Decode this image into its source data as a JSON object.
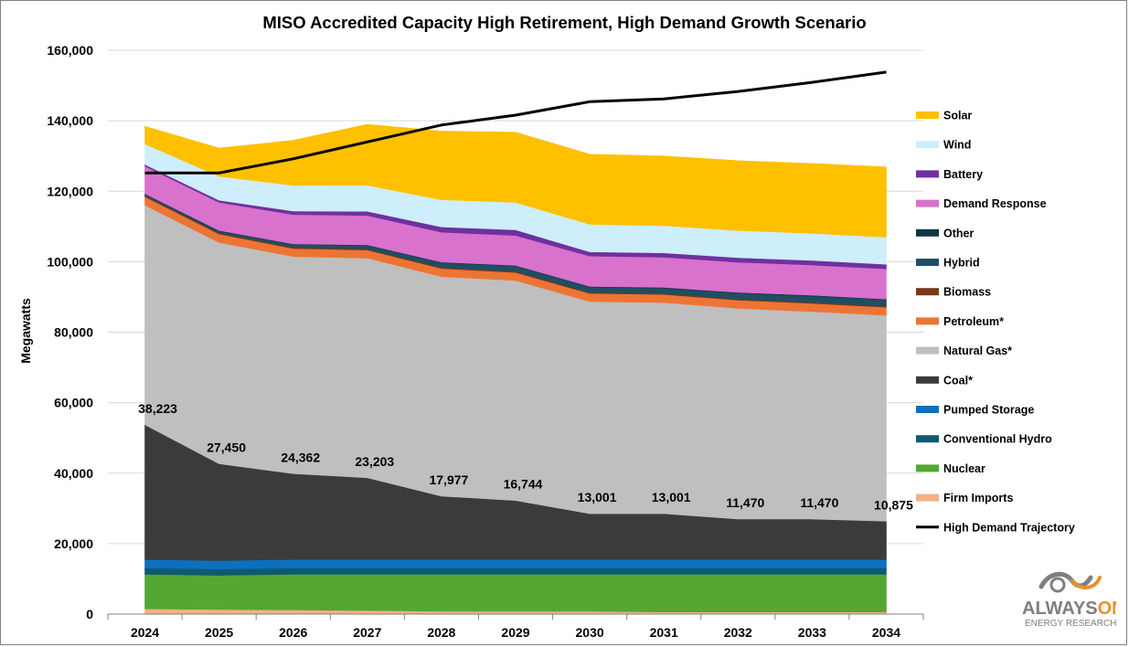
{
  "colors": {
    "Solar": "#ffc000",
    "Wind": "#cdeefa",
    "Battery": "#7030a0",
    "Demand Response": "#d872cc",
    "Other": "#0f3642",
    "Hybrid": "#1f4e63",
    "Biomass": "#7b3717",
    "Petroleum*": "#ec7535",
    "Natural Gas*": "#bfbfbf",
    "Coal*": "#3b3b3b",
    "Pumped Storage": "#0c70c0",
    "Conventional Hydro": "#0e5a71",
    "Nuclear": "#53a732",
    "Firm Imports": "#f4b183",
    "High Demand Trajectory": "#000000"
  },
  "logo": {
    "text_gray": "ALWAYS",
    "text_orange": "ON",
    "subtitle": "ENERGY RESEARCH"
  },
  "chart_data": {
    "type": "area",
    "title": "MISO Accredited Capacity High Retirement, High Demand Growth Scenario",
    "xlabel": "",
    "ylabel": "Megawatts",
    "ylim": [
      0,
      160000
    ],
    "yticks": [
      0,
      20000,
      40000,
      60000,
      80000,
      100000,
      120000,
      140000,
      160000
    ],
    "ytick_labels": [
      "0",
      "20,000",
      "40,000",
      "60,000",
      "80,000",
      "100,000",
      "120,000",
      "140,000",
      "160,000"
    ],
    "x": [
      "2024",
      "2025",
      "2026",
      "2027",
      "2028",
      "2029",
      "2030",
      "2031",
      "2032",
      "2033",
      "2034"
    ],
    "grid": true,
    "legend_position": "right",
    "stacked": true,
    "series": [
      {
        "name": "Firm Imports",
        "values": [
          1500,
          1300,
          1200,
          1000,
          800,
          800,
          800,
          600,
          600,
          600,
          600
        ]
      },
      {
        "name": "Nuclear",
        "values": [
          9800,
          9700,
          10100,
          10300,
          10500,
          10500,
          10500,
          10700,
          10700,
          10700,
          10700
        ]
      },
      {
        "name": "Conventional Hydro",
        "values": [
          1800,
          1800,
          1800,
          1800,
          1800,
          1800,
          1800,
          1800,
          1800,
          1800,
          1800
        ]
      },
      {
        "name": "Pumped Storage",
        "values": [
          2400,
          2400,
          2400,
          2400,
          2400,
          2400,
          2400,
          2400,
          2400,
          2400,
          2400
        ]
      },
      {
        "name": "Coal*",
        "values": [
          38223,
          27450,
          24362,
          23203,
          17977,
          16744,
          13001,
          13001,
          11470,
          11470,
          10875
        ]
      },
      {
        "name": "Natural Gas*",
        "values": [
          62300,
          62800,
          61600,
          62300,
          62300,
          62400,
          60200,
          59900,
          59800,
          58900,
          58400
        ]
      },
      {
        "name": "Petroleum*",
        "values": [
          2400,
          2400,
          2300,
          2300,
          2300,
          2300,
          2300,
          2300,
          2300,
          2300,
          2300
        ]
      },
      {
        "name": "Biomass",
        "values": [
          300,
          300,
          300,
          300,
          300,
          300,
          300,
          300,
          300,
          300,
          300
        ]
      },
      {
        "name": "Hybrid",
        "values": [
          400,
          500,
          800,
          1000,
          1300,
          1500,
          1500,
          1500,
          1700,
          1800,
          1800
        ]
      },
      {
        "name": "Other",
        "values": [
          200,
          200,
          200,
          200,
          200,
          200,
          200,
          200,
          200,
          200,
          200
        ]
      },
      {
        "name": "Demand Response",
        "values": [
          7800,
          8000,
          8300,
          8300,
          8500,
          8500,
          8600,
          8600,
          8600,
          8600,
          8600
        ]
      },
      {
        "name": "Battery",
        "values": [
          500,
          600,
          1000,
          1200,
          1500,
          1600,
          1200,
          1200,
          1300,
          1300,
          1300
        ]
      },
      {
        "name": "Wind",
        "values": [
          5800,
          6800,
          7300,
          7400,
          7700,
          7800,
          7800,
          7700,
          7700,
          7700,
          7700
        ]
      },
      {
        "name": "Solar",
        "values": [
          5000,
          8000,
          12800,
          17300,
          19500,
          19900,
          19900,
          19800,
          19800,
          19800,
          19900
        ]
      }
    ],
    "line_series": [
      {
        "name": "High Demand Trajectory",
        "values": [
          125200,
          125200,
          129200,
          134000,
          138800,
          141600,
          145400,
          146200,
          148300,
          150900,
          153800
        ]
      }
    ],
    "annotations": [
      "38,223",
      "27,450",
      "24,362",
      "23,203",
      "17,977",
      "16,744",
      "13,001",
      "13,001",
      "11,470",
      "11,470",
      "10,875"
    ],
    "legend": [
      "Solar",
      "Wind",
      "Battery",
      "Demand Response",
      "Other",
      "Hybrid",
      "Biomass",
      "Petroleum*",
      "Natural Gas*",
      "Coal*",
      "Pumped Storage",
      "Conventional Hydro",
      "Nuclear",
      "Firm Imports",
      "High Demand Trajectory"
    ]
  }
}
